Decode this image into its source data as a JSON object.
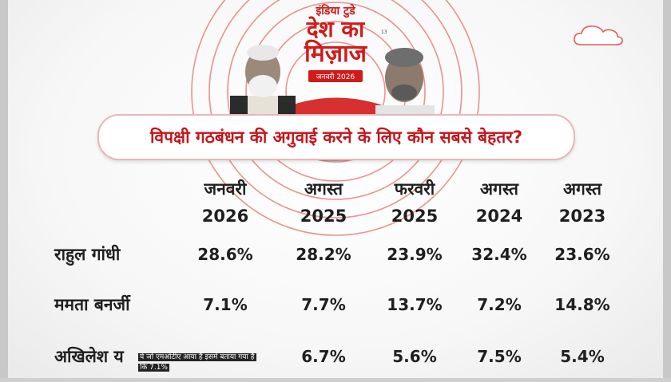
{
  "logo": {
    "brand": "इंडिया टुडे",
    "line1": "देश का",
    "line2": "मिज़ाज",
    "date_badge": "जनवरी 2026",
    "superscript": "13"
  },
  "chart_data": {
    "type": "table",
    "title": "विपक्षी गठबंधन की अगुवाई करने के लिए कौन सबसे बेहतर?",
    "columns": [
      {
        "month": "जनवरी",
        "year": "2026"
      },
      {
        "month": "अगस्त",
        "year": "2025"
      },
      {
        "month": "फरवरी",
        "year": "2025"
      },
      {
        "month": "अगस्त",
        "year": "2024"
      },
      {
        "month": "अगस्त",
        "year": "2023"
      }
    ],
    "rows": [
      {
        "name": "राहुल गांधी",
        "values": [
          "28.6%",
          "28.2%",
          "23.9%",
          "32.4%",
          "23.6%"
        ]
      },
      {
        "name": "ममता बनर्जी",
        "values": [
          "7.1%",
          "7.7%",
          "13.7%",
          "7.2%",
          "14.8%"
        ]
      },
      {
        "name": "अखिलेश य",
        "values": [
          "",
          "6.7%",
          "5.6%",
          "7.5%",
          "5.4%"
        ]
      }
    ]
  },
  "caption": {
    "line1": "ये जो एमओटीए आया है इसमें बताया गया है",
    "line2": "कि 7.1%"
  },
  "colors": {
    "accent": "#c4161c",
    "text": "#1f1f1f"
  }
}
